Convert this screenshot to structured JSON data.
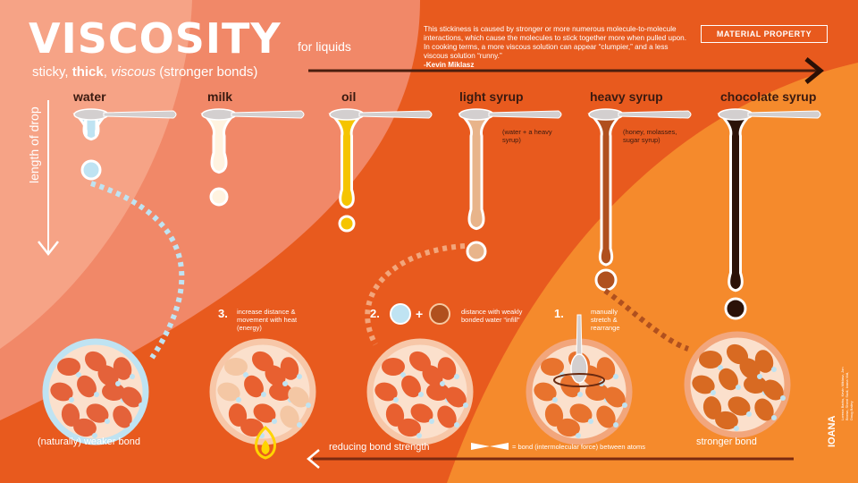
{
  "title": "VISCOSITY",
  "subtitle": "for liquids",
  "tagline": {
    "part1": "sticky, ",
    "part2": "thick",
    "part3": ", ",
    "part4": "viscous",
    "part5": " (stronger bonds)"
  },
  "quote": {
    "text": "This stickiness is caused by stronger or more numerous molecule-to-molecule interactions, which cause the molecules to stick together more when pulled upon. In cooking terms, a more viscous solution can appear “clumpier,” and a less viscous solution “runny.”",
    "author": "-Kevin Miklasz"
  },
  "badge": "MATERIAL PROPERTY",
  "side_label": "length of drop",
  "liquids": [
    {
      "name": "water",
      "color": "#bfe3f2"
    },
    {
      "name": "milk",
      "color": "#fff3e0"
    },
    {
      "name": "oil",
      "color": "#f5c400"
    },
    {
      "name": "light syrup",
      "color": "#e8b48a",
      "note": "(water + a heavy syrup)"
    },
    {
      "name": "heavy syrup",
      "color": "#b0501e",
      "note": "(honey, molasses, sugar syrup)"
    },
    {
      "name": "chocolate syrup",
      "color": "#2b1208"
    }
  ],
  "steps": [
    {
      "number": "1.",
      "text": "manually stretch & rearrange"
    },
    {
      "number": "2.",
      "text": "distance with weakly bonded water “infill”"
    },
    {
      "number": "3.",
      "text": "increase distance & movement with heat (energy)"
    }
  ],
  "plus_sign": "+",
  "bottom": {
    "weak": "(naturally) weaker bond",
    "strong": "stronger bond",
    "reducing": "reducing bond strength",
    "legend": "= bond (intermolecular force) between atoms"
  },
  "credit": "IOANA",
  "credit_small": "Lorena Barbu, Kevin Miklasz, Jon Brown, Sherri Sudi, Ioana Vidi, Doug Bailey",
  "colors": {
    "bg_orange": "#e85a1e",
    "left_salmon": "#f18868",
    "left_light": "#f5a88a",
    "right_orange": "#f58a2c",
    "spoon": "#c9c4c4",
    "dark_text": "#3a1a10",
    "white": "#ffffff"
  }
}
